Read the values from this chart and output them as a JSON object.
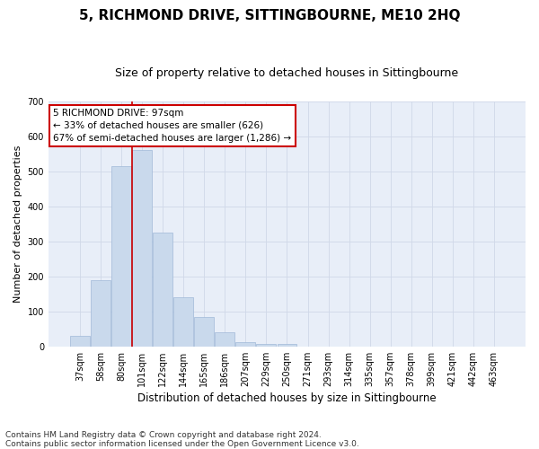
{
  "title": "5, RICHMOND DRIVE, SITTINGBOURNE, ME10 2HQ",
  "subtitle": "Size of property relative to detached houses in Sittingbourne",
  "xlabel": "Distribution of detached houses by size in Sittingbourne",
  "ylabel": "Number of detached properties",
  "categories": [
    "37sqm",
    "58sqm",
    "80sqm",
    "101sqm",
    "122sqm",
    "144sqm",
    "165sqm",
    "186sqm",
    "207sqm",
    "229sqm",
    "250sqm",
    "271sqm",
    "293sqm",
    "314sqm",
    "335sqm",
    "357sqm",
    "378sqm",
    "399sqm",
    "421sqm",
    "442sqm",
    "463sqm"
  ],
  "values": [
    30,
    190,
    515,
    560,
    325,
    140,
    85,
    40,
    12,
    8,
    8,
    0,
    0,
    0,
    0,
    0,
    0,
    0,
    0,
    0,
    0
  ],
  "bar_color": "#c9d9ec",
  "bar_edgecolor": "#a0b8d8",
  "annotation_text": "5 RICHMOND DRIVE: 97sqm\n← 33% of detached houses are smaller (626)\n67% of semi-detached houses are larger (1,286) →",
  "annotation_box_color": "#ffffff",
  "annotation_box_edgecolor": "#cc0000",
  "redline_color": "#cc0000",
  "redline_x": 2.5,
  "ylim": [
    0,
    700
  ],
  "yticks": [
    0,
    100,
    200,
    300,
    400,
    500,
    600,
    700
  ],
  "grid_color": "#d0d8e8",
  "bg_color": "#e8eef8",
  "footer": "Contains HM Land Registry data © Crown copyright and database right 2024.\nContains public sector information licensed under the Open Government Licence v3.0.",
  "title_fontsize": 11,
  "subtitle_fontsize": 9,
  "xlabel_fontsize": 8.5,
  "ylabel_fontsize": 8,
  "tick_fontsize": 7,
  "footer_fontsize": 6.5,
  "annot_fontsize": 7.5
}
